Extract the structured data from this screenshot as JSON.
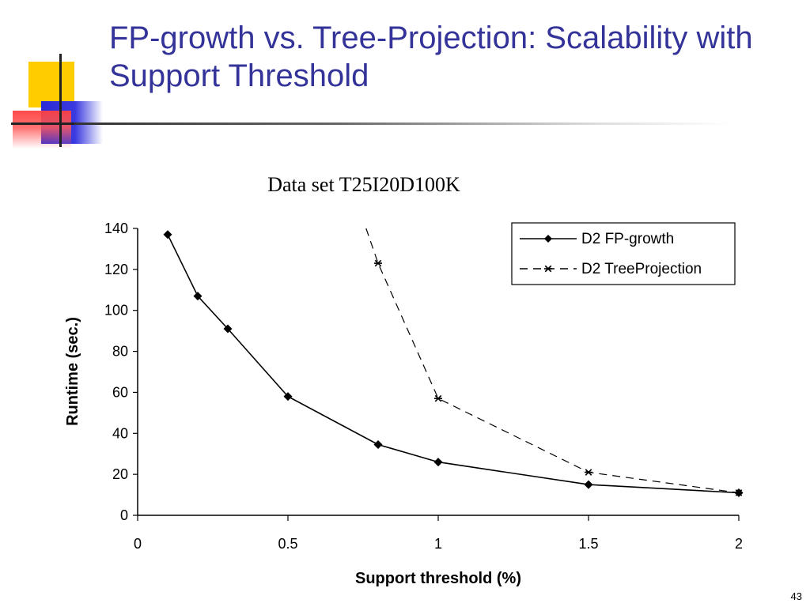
{
  "slide": {
    "title": "FP-growth vs. Tree-Projection: Scalability with Support Threshold",
    "page_number": "43"
  },
  "chart_data": {
    "type": "line",
    "title": "Data set T25I20D100K",
    "xlabel": "Support threshold (%)",
    "ylabel": "Runtime (sec.)",
    "xlim": [
      0,
      2
    ],
    "ylim": [
      0,
      140
    ],
    "x_ticks": [
      "0",
      "0.5",
      "1",
      "1.5",
      "2"
    ],
    "y_ticks": [
      "0",
      "20",
      "40",
      "60",
      "80",
      "100",
      "120",
      "140"
    ],
    "grid": false,
    "legend_position": "top-right",
    "series": [
      {
        "name": "D2 FP-growth",
        "style": "solid",
        "marker": "diamond",
        "color": "#000000",
        "x": [
          0.1,
          0.2,
          0.3,
          0.5,
          0.8,
          1.0,
          1.5,
          2.0
        ],
        "y": [
          137,
          107,
          91,
          58,
          34.5,
          26,
          15,
          11
        ]
      },
      {
        "name": "D2 TreeProjection",
        "style": "dashed",
        "marker": "star",
        "color": "#000000",
        "x": [
          0.8,
          1.0,
          1.5,
          2.0
        ],
        "y": [
          123,
          57,
          21,
          11
        ],
        "offscale_start": {
          "x": 0.76,
          "y": 140
        }
      }
    ]
  }
}
